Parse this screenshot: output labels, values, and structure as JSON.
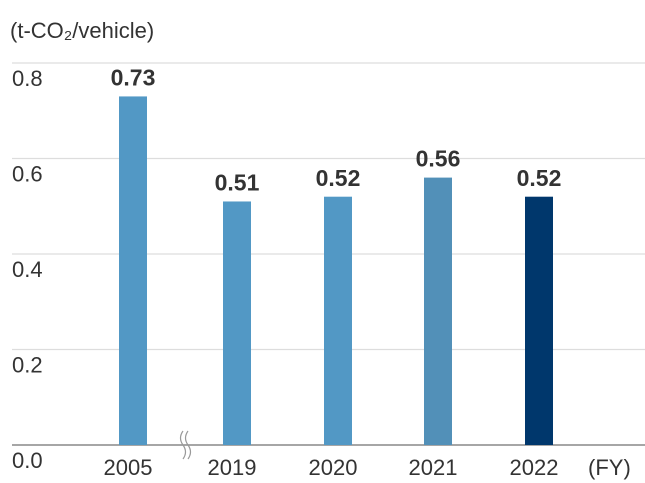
{
  "chart_data": {
    "type": "bar",
    "y_label": "(t-CO₂/vehicle)",
    "x_label": "(FY)",
    "categories": [
      "2005",
      "2019",
      "2020",
      "2021",
      "2022"
    ],
    "values": [
      0.73,
      0.51,
      0.52,
      0.56,
      0.52
    ],
    "colors": [
      "#5298c5",
      "#5298c5",
      "#5298c5",
      "#5290b8",
      "#00376c"
    ],
    "ylim": [
      0,
      0.8
    ],
    "yticks": [
      {
        "value": 0,
        "label": "0.0"
      },
      0.2,
      0.4,
      0.6,
      0.8
    ],
    "grid": true
  }
}
